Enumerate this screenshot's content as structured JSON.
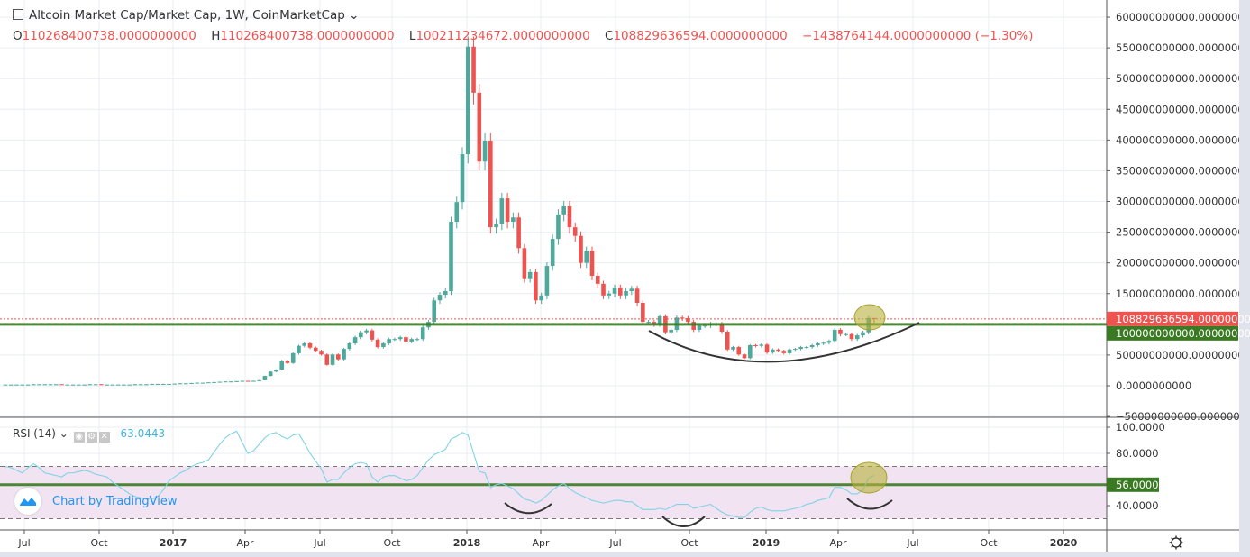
{
  "legend": {
    "title": "Altcoin Market Cap/Market Cap, 1W, CoinMarketCap",
    "open_key": "O",
    "open": "110268400738.0000000000",
    "high_key": "H",
    "high": "110268400738.0000000000",
    "low_key": "L",
    "low": "100211234672.0000000000",
    "close_key": "C",
    "close": "108829636594.0000000000",
    "change": "−1438764144.0000000000 (−1.30%)"
  },
  "rsi_legend": {
    "name": "RSI (14)",
    "value": "63.0443"
  },
  "watermark": "Chart by TradingView",
  "colors": {
    "up": "#4ea89b",
    "down": "#ef5350",
    "rsi": "#7fd3e6",
    "support": "#3a7a22",
    "band": "#f1e3f1",
    "highlight": "#b8b13a"
  },
  "price_axis": {
    "ticks": [
      "600000000000.0000000000",
      "550000000000.0000000000",
      "500000000000.0000000000",
      "450000000000.0000000000",
      "400000000000.0000000000",
      "350000000000.0000000000",
      "300000000000.0000000000",
      "250000000000.0000000000",
      "200000000000.0000000000",
      "150000000000.0000000000",
      "50000000000.0000000000",
      "0.0000000000",
      "−50000000000.0000000000"
    ],
    "tick_values": [
      600000000000.0,
      550000000000.0,
      500000000000.0,
      450000000000.0,
      400000000000.0,
      350000000000.0,
      300000000000.0,
      250000000000.0,
      200000000000.0,
      150000000000.0,
      50000000000.0,
      0,
      -50000000000.0
    ],
    "last_price_label": "108829636594.0000000000",
    "support_label": "100000000000.0000000000"
  },
  "rsi_axis": {
    "ticks": [
      "100.0000",
      "80.0000",
      "40.0000"
    ],
    "tick_values": [
      100,
      80,
      40
    ],
    "level_label": "56.0000"
  },
  "time_axis": {
    "ticks": [
      "Jul",
      "Oct",
      "2017",
      "Apr",
      "Jul",
      "Oct",
      "2018",
      "Apr",
      "Jul",
      "Oct",
      "2019",
      "Apr",
      "Jul",
      "Oct",
      "2020"
    ]
  },
  "chart_data": [
    {
      "type": "candlestick",
      "title": "Altcoin Market Cap/Market Cap, 1W, CoinMarketCap",
      "ylim": [
        -50000000000.0,
        600000000000.0
      ],
      "grid": true,
      "last_bar": {
        "open": 110268400738,
        "high": 110268400738,
        "low": 100211234672,
        "close": 108829636594
      },
      "weekly_close": [
        2000000000.0,
        2000000000.0,
        2000000000.0,
        2000000000.0,
        2000000000.0,
        2500000000.0,
        2500000000.0,
        2500000000.0,
        2500000000.0,
        2500000000.0,
        2000000000.0,
        2000000000.0,
        2000000000.0,
        2000000000.0,
        2000000000.0,
        2500000000.0,
        2500000000.0,
        2000000000.0,
        2000000000.0,
        2000000000.0,
        2000000000.0,
        2000000000.0,
        2000000000.0,
        2500000000.0,
        2500000000.0,
        2500000000.0,
        3000000000.0,
        3000000000.0,
        3000000000.0,
        3000000000.0,
        3500000000.0,
        4000000000.0,
        4000000000.0,
        4500000000.0,
        5000000000.0,
        5000000000.0,
        5500000000.0,
        6000000000.0,
        6500000000.0,
        7000000000.0,
        7000000000.0,
        7500000000.0,
        8000000000.0,
        7500000000.0,
        8000000000.0,
        9000000000.0,
        16000000000.0,
        23000000000.0,
        26000000000.0,
        41000000000.0,
        37000000000.0,
        53000000000.0,
        65000000000.0,
        69000000000.0,
        62000000000.0,
        57000000000.0,
        51000000000.0,
        34000000000.0,
        51000000000.0,
        43000000000.0,
        60000000000.0,
        69000000000.0,
        79000000000.0,
        87000000000.0,
        90000000000.0,
        75000000000.0,
        63000000000.0,
        69000000000.0,
        76000000000.0,
        76000000000.0,
        79000000000.0,
        72000000000.0,
        76000000000.0,
        76000000000.0,
        95000000000.0,
        104000000000.0,
        139000000000.0,
        148000000000.0,
        154000000000.0,
        267000000000.0,
        299000000000.0,
        377000000000.0,
        552000000000.0,
        477000000000.0,
        365000000000.0,
        399000000000.0,
        258000000000.0,
        264000000000.0,
        305000000000.0,
        267000000000.0,
        274000000000.0,
        224000000000.0,
        175000000000.0,
        185000000000.0,
        139000000000.0,
        147000000000.0,
        195000000000.0,
        239000000000.0,
        279000000000.0,
        292000000000.0,
        258000000000.0,
        244000000000.0,
        200000000000.0,
        220000000000.0,
        179000000000.0,
        166000000000.0,
        147000000000.0,
        150000000000.0,
        160000000000.0,
        147000000000.0,
        154000000000.0,
        158000000000.0,
        135000000000.0,
        104000000000.0,
        104000000000.0,
        100000000000.0,
        113000000000.0,
        87000000000.0,
        91000000000.0,
        111000000000.0,
        110000000000.0,
        104000000000.0,
        91000000000.0,
        98000000000.0,
        98000000000.0,
        101000000000.0,
        101000000000.0,
        88000000000.0,
        59000000000.0,
        63000000000.0,
        51000000000.0,
        45000000000.0,
        66000000000.0,
        65000000000.0,
        67000000000.0,
        54000000000.0,
        59000000000.0,
        57000000000.0,
        53000000000.0,
        59000000000.0,
        60000000000.0,
        63000000000.0,
        63000000000.0,
        66000000000.0,
        69000000000.0,
        70000000000.0,
        73000000000.0,
        91000000000.0,
        84000000000.0,
        84000000000.0,
        76000000000.0,
        82000000000.0,
        87000000000.0,
        110268400738,
        108829636594
      ],
      "horizontal_lines": [
        {
          "value": 100000000000.0,
          "style": "solid",
          "color": "#3a7a22"
        },
        {
          "value": 108829636594,
          "style": "dashed",
          "color": "#ef5350"
        }
      ],
      "annotations": [
        "rounded-bottom arc",
        "highlight ellipse on last candles"
      ]
    },
    {
      "type": "line",
      "name": "RSI (14)",
      "ylim": [
        20,
        105
      ],
      "band": [
        30,
        70
      ],
      "level_line": 56,
      "values": [
        70,
        69,
        67,
        65,
        69,
        72,
        69,
        65,
        64,
        63,
        62,
        65,
        65,
        66,
        67,
        66,
        64,
        63,
        62,
        58,
        55,
        52,
        49,
        47,
        46,
        45,
        45,
        47,
        52,
        59,
        62,
        65,
        67,
        70,
        72,
        73,
        75,
        81,
        87,
        92,
        95,
        97,
        88,
        80,
        82,
        87,
        92,
        95,
        96,
        93,
        91,
        94,
        95,
        88,
        80,
        74,
        68,
        58,
        60,
        60,
        65,
        69,
        72,
        73,
        72,
        62,
        58,
        62,
        63,
        63,
        61,
        59,
        60,
        63,
        69,
        75,
        79,
        81,
        83,
        91,
        93,
        96,
        94,
        80,
        66,
        65,
        54,
        56,
        57,
        55,
        53,
        49,
        45,
        44,
        42,
        44,
        48,
        52,
        55,
        57,
        53,
        50,
        48,
        46,
        44,
        43,
        42,
        43,
        44,
        44,
        43,
        43,
        40,
        37,
        37,
        37,
        38,
        37,
        39,
        41,
        41,
        41,
        38,
        39,
        40,
        41,
        38,
        35,
        33,
        32,
        31,
        31,
        35,
        38,
        39,
        37,
        36,
        36,
        36,
        37,
        38,
        39,
        41,
        42,
        44,
        45,
        46,
        54,
        54,
        52,
        49,
        49,
        52,
        61,
        63.0443
      ],
      "annotations": [
        "three rounded-bottom arcs",
        "highlight ellipse on last values"
      ]
    }
  ]
}
